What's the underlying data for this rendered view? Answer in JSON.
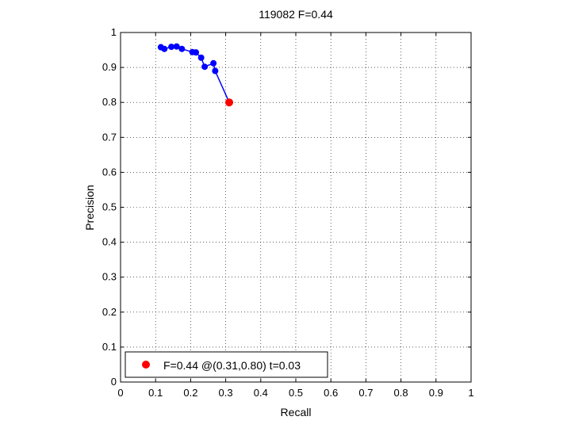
{
  "chart_data": {
    "type": "scatter",
    "title": "119082 F=0.44",
    "xlabel": "Recall",
    "ylabel": "Precision",
    "xlim": [
      0,
      1
    ],
    "ylim": [
      0,
      1
    ],
    "xticks": [
      0,
      0.1,
      0.2,
      0.3,
      0.4,
      0.5,
      0.6,
      0.7,
      0.8,
      0.9,
      1
    ],
    "yticks": [
      0,
      0.1,
      0.2,
      0.3,
      0.4,
      0.5,
      0.6,
      0.7,
      0.8,
      0.9,
      1
    ],
    "xtick_labels": [
      "0",
      "0.1",
      "0.2",
      "0.3",
      "0.4",
      "0.5",
      "0.6",
      "0.7",
      "0.8",
      "0.9",
      "1"
    ],
    "ytick_labels": [
      "0",
      "0.1",
      "0.2",
      "0.3",
      "0.4",
      "0.5",
      "0.6",
      "0.7",
      "0.8",
      "0.9",
      "1"
    ],
    "grid": true,
    "grid_style": "dotted",
    "legend_position": "bottom-left",
    "series": [
      {
        "type": "line",
        "color": "#0000ff",
        "marker": "circle",
        "x": [
          0.115,
          0.125,
          0.145,
          0.16,
          0.175,
          0.205,
          0.215,
          0.23,
          0.24,
          0.265,
          0.27,
          0.31
        ],
        "y": [
          0.958,
          0.953,
          0.959,
          0.96,
          0.953,
          0.944,
          0.943,
          0.928,
          0.902,
          0.912,
          0.89,
          0.8
        ]
      },
      {
        "name": "F=0.44 @(0.31,0.80) t=0.03",
        "type": "point",
        "color": "#ff0000",
        "marker": "circle",
        "x": [
          0.31
        ],
        "y": [
          0.8
        ]
      }
    ]
  }
}
